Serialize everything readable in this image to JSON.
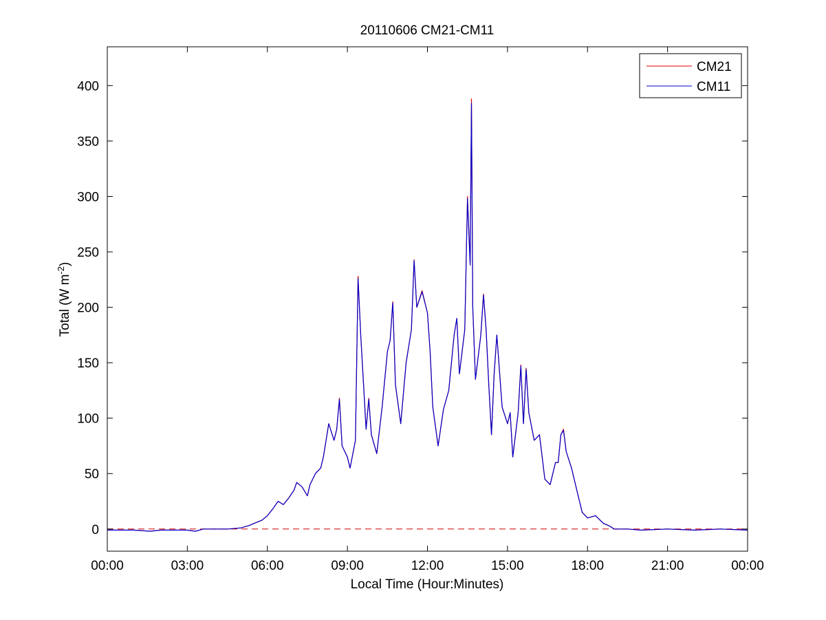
{
  "chart_data": {
    "type": "line",
    "title": "20110606 CM21-CM11",
    "xlabel": "Local Time (Hour:Minutes)",
    "ylabel_main": "Total (W m",
    "ylabel_exp": "-2",
    "ylabel_close": ")",
    "xlim_hours": [
      0,
      24
    ],
    "ylim": [
      -20,
      435
    ],
    "x_ticks": [
      {
        "h": 0,
        "label": "00:00"
      },
      {
        "h": 3,
        "label": "03:00"
      },
      {
        "h": 6,
        "label": "06:00"
      },
      {
        "h": 9,
        "label": "09:00"
      },
      {
        "h": 12,
        "label": "12:00"
      },
      {
        "h": 15,
        "label": "15:00"
      },
      {
        "h": 18,
        "label": "18:00"
      },
      {
        "h": 21,
        "label": "21:00"
      },
      {
        "h": 24,
        "label": "00:00"
      }
    ],
    "y_ticks": [
      0,
      50,
      100,
      150,
      200,
      250,
      300,
      350,
      400
    ],
    "zero_line": {
      "y": 0,
      "style": "dashed",
      "color": "#cc0000"
    },
    "legend": {
      "position": "top-right"
    },
    "series": [
      {
        "name": "CM21",
        "color": "#dd0000",
        "points": [
          [
            0.0,
            -1
          ],
          [
            1.0,
            -1
          ],
          [
            1.6,
            -2
          ],
          [
            2.0,
            -1
          ],
          [
            2.5,
            -1
          ],
          [
            3.0,
            -1
          ],
          [
            3.3,
            -2
          ],
          [
            3.6,
            0
          ],
          [
            4.0,
            0
          ],
          [
            4.5,
            0
          ],
          [
            5.0,
            1
          ],
          [
            5.3,
            3
          ],
          [
            5.6,
            6
          ],
          [
            5.8,
            8
          ],
          [
            6.0,
            12
          ],
          [
            6.2,
            18
          ],
          [
            6.4,
            25
          ],
          [
            6.6,
            22
          ],
          [
            6.8,
            28
          ],
          [
            7.0,
            35
          ],
          [
            7.1,
            42
          ],
          [
            7.3,
            38
          ],
          [
            7.5,
            30
          ],
          [
            7.6,
            40
          ],
          [
            7.8,
            50
          ],
          [
            8.0,
            55
          ],
          [
            8.1,
            65
          ],
          [
            8.3,
            95
          ],
          [
            8.5,
            80
          ],
          [
            8.6,
            90
          ],
          [
            8.7,
            118
          ],
          [
            8.8,
            75
          ],
          [
            9.0,
            65
          ],
          [
            9.1,
            55
          ],
          [
            9.3,
            80
          ],
          [
            9.4,
            228
          ],
          [
            9.5,
            175
          ],
          [
            9.7,
            90
          ],
          [
            9.8,
            118
          ],
          [
            9.9,
            85
          ],
          [
            10.1,
            68
          ],
          [
            10.3,
            110
          ],
          [
            10.5,
            160
          ],
          [
            10.6,
            170
          ],
          [
            10.7,
            205
          ],
          [
            10.8,
            130
          ],
          [
            11.0,
            95
          ],
          [
            11.2,
            150
          ],
          [
            11.4,
            180
          ],
          [
            11.5,
            243
          ],
          [
            11.6,
            200
          ],
          [
            11.8,
            215
          ],
          [
            12.0,
            195
          ],
          [
            12.1,
            160
          ],
          [
            12.2,
            110
          ],
          [
            12.4,
            75
          ],
          [
            12.6,
            108
          ],
          [
            12.8,
            125
          ],
          [
            13.0,
            175
          ],
          [
            13.1,
            190
          ],
          [
            13.2,
            140
          ],
          [
            13.4,
            180
          ],
          [
            13.5,
            300
          ],
          [
            13.6,
            240
          ],
          [
            13.65,
            388
          ],
          [
            13.7,
            200
          ],
          [
            13.8,
            135
          ],
          [
            14.0,
            175
          ],
          [
            14.1,
            212
          ],
          [
            14.2,
            180
          ],
          [
            14.3,
            130
          ],
          [
            14.4,
            85
          ],
          [
            14.5,
            140
          ],
          [
            14.6,
            175
          ],
          [
            14.8,
            110
          ],
          [
            15.0,
            95
          ],
          [
            15.1,
            105
          ],
          [
            15.2,
            65
          ],
          [
            15.4,
            105
          ],
          [
            15.5,
            148
          ],
          [
            15.6,
            95
          ],
          [
            15.7,
            145
          ],
          [
            15.8,
            105
          ],
          [
            16.0,
            80
          ],
          [
            16.2,
            85
          ],
          [
            16.4,
            45
          ],
          [
            16.6,
            40
          ],
          [
            16.8,
            60
          ],
          [
            16.9,
            60
          ],
          [
            17.0,
            85
          ],
          [
            17.1,
            90
          ],
          [
            17.2,
            70
          ],
          [
            17.4,
            55
          ],
          [
            17.6,
            35
          ],
          [
            17.8,
            15
          ],
          [
            18.0,
            10
          ],
          [
            18.3,
            12
          ],
          [
            18.6,
            5
          ],
          [
            18.8,
            3
          ],
          [
            19.0,
            0
          ],
          [
            19.5,
            0
          ],
          [
            20.0,
            -1
          ],
          [
            21.0,
            0
          ],
          [
            22.0,
            -1
          ],
          [
            23.0,
            0
          ],
          [
            24.0,
            -1
          ]
        ]
      },
      {
        "name": "CM11",
        "color": "#0000cc",
        "points": [
          [
            0.0,
            -1
          ],
          [
            1.0,
            -1
          ],
          [
            1.6,
            -2
          ],
          [
            2.0,
            -1
          ],
          [
            2.5,
            -1
          ],
          [
            3.0,
            -1
          ],
          [
            3.3,
            -2
          ],
          [
            3.6,
            0
          ],
          [
            4.0,
            0
          ],
          [
            4.5,
            0
          ],
          [
            5.0,
            1
          ],
          [
            5.3,
            3
          ],
          [
            5.6,
            6
          ],
          [
            5.8,
            8
          ],
          [
            6.0,
            12
          ],
          [
            6.2,
            18
          ],
          [
            6.4,
            25
          ],
          [
            6.6,
            22
          ],
          [
            6.8,
            28
          ],
          [
            7.0,
            35
          ],
          [
            7.1,
            42
          ],
          [
            7.3,
            38
          ],
          [
            7.5,
            30
          ],
          [
            7.6,
            40
          ],
          [
            7.8,
            50
          ],
          [
            8.0,
            55
          ],
          [
            8.1,
            65
          ],
          [
            8.3,
            95
          ],
          [
            8.5,
            80
          ],
          [
            8.6,
            90
          ],
          [
            8.7,
            117
          ],
          [
            8.8,
            75
          ],
          [
            9.0,
            65
          ],
          [
            9.1,
            55
          ],
          [
            9.3,
            80
          ],
          [
            9.4,
            226
          ],
          [
            9.5,
            175
          ],
          [
            9.7,
            90
          ],
          [
            9.8,
            117
          ],
          [
            9.9,
            85
          ],
          [
            10.1,
            68
          ],
          [
            10.3,
            110
          ],
          [
            10.5,
            160
          ],
          [
            10.6,
            170
          ],
          [
            10.7,
            204
          ],
          [
            10.8,
            130
          ],
          [
            11.0,
            95
          ],
          [
            11.2,
            150
          ],
          [
            11.4,
            180
          ],
          [
            11.5,
            242
          ],
          [
            11.6,
            200
          ],
          [
            11.8,
            214
          ],
          [
            12.0,
            195
          ],
          [
            12.1,
            160
          ],
          [
            12.2,
            110
          ],
          [
            12.4,
            75
          ],
          [
            12.6,
            108
          ],
          [
            12.8,
            125
          ],
          [
            13.0,
            175
          ],
          [
            13.1,
            190
          ],
          [
            13.2,
            140
          ],
          [
            13.4,
            180
          ],
          [
            13.5,
            298
          ],
          [
            13.6,
            238
          ],
          [
            13.65,
            384
          ],
          [
            13.7,
            200
          ],
          [
            13.8,
            135
          ],
          [
            14.0,
            175
          ],
          [
            14.1,
            211
          ],
          [
            14.2,
            180
          ],
          [
            14.3,
            130
          ],
          [
            14.4,
            85
          ],
          [
            14.5,
            140
          ],
          [
            14.6,
            175
          ],
          [
            14.8,
            110
          ],
          [
            15.0,
            95
          ],
          [
            15.1,
            105
          ],
          [
            15.2,
            65
          ],
          [
            15.4,
            105
          ],
          [
            15.5,
            147
          ],
          [
            15.6,
            95
          ],
          [
            15.7,
            144
          ],
          [
            15.8,
            105
          ],
          [
            16.0,
            80
          ],
          [
            16.2,
            85
          ],
          [
            16.4,
            45
          ],
          [
            16.6,
            40
          ],
          [
            16.8,
            60
          ],
          [
            16.9,
            60
          ],
          [
            17.0,
            85
          ],
          [
            17.1,
            89
          ],
          [
            17.2,
            70
          ],
          [
            17.4,
            55
          ],
          [
            17.6,
            35
          ],
          [
            17.8,
            15
          ],
          [
            18.0,
            10
          ],
          [
            18.3,
            12
          ],
          [
            18.6,
            5
          ],
          [
            18.8,
            3
          ],
          [
            19.0,
            0
          ],
          [
            19.5,
            0
          ],
          [
            20.0,
            -1
          ],
          [
            21.0,
            0
          ],
          [
            22.0,
            -1
          ],
          [
            23.0,
            0
          ],
          [
            24.0,
            -1
          ]
        ]
      }
    ]
  }
}
